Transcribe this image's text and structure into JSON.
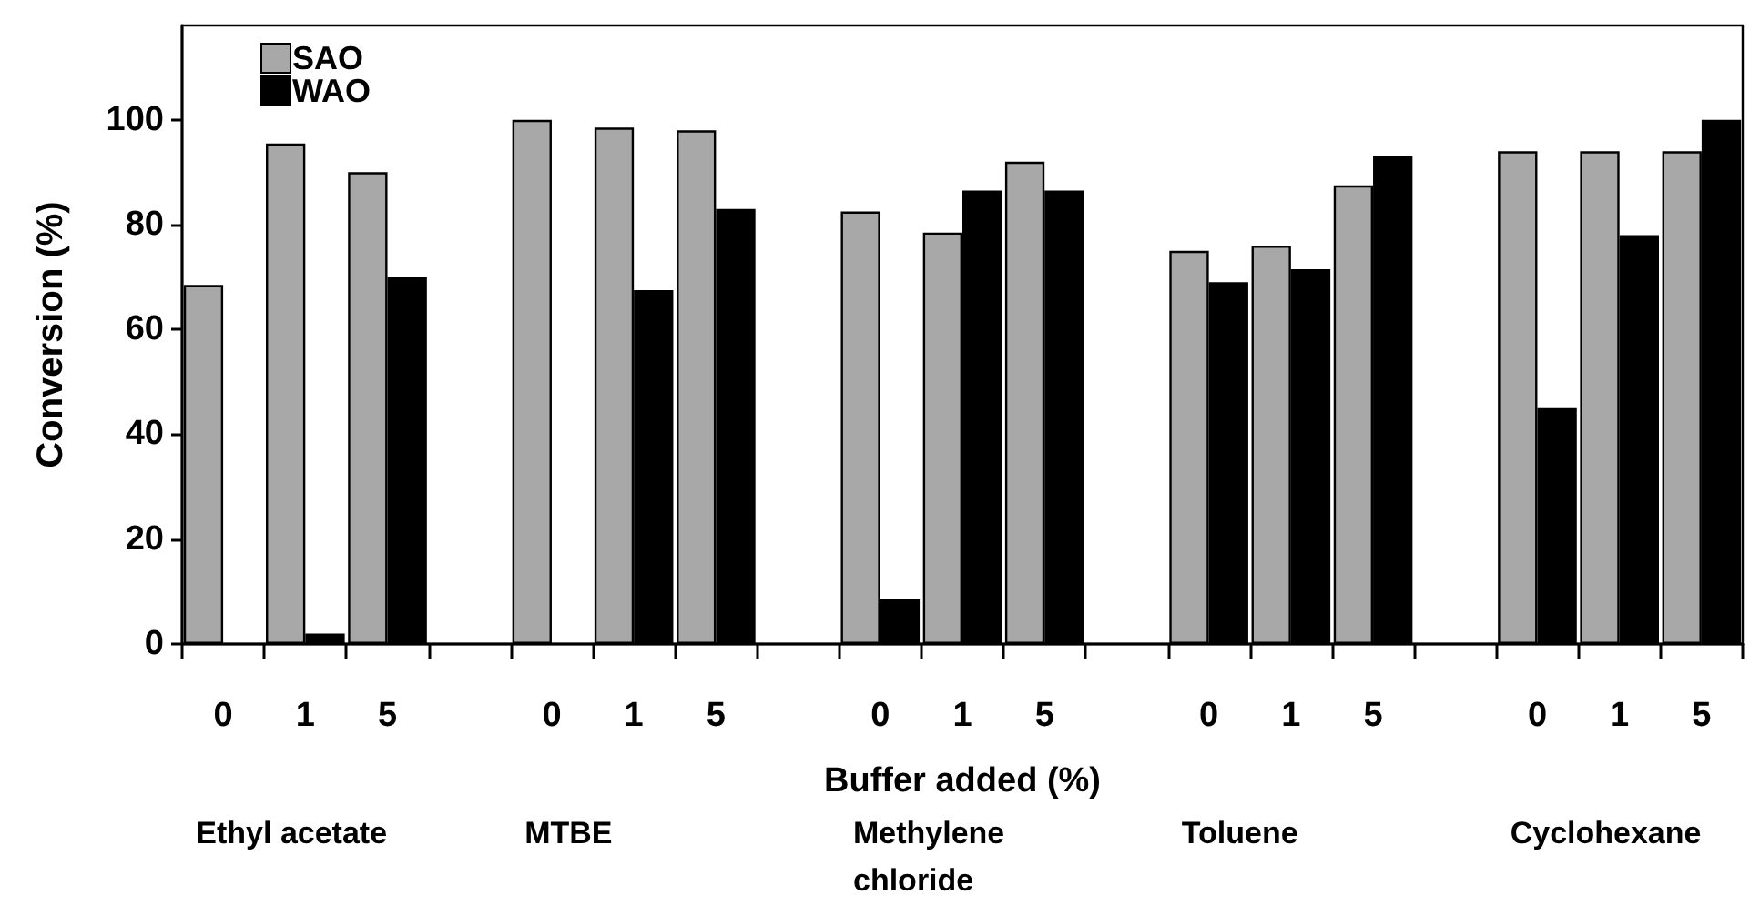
{
  "chart_data": {
    "type": "bar",
    "xlabel": "Buffer added (%)",
    "ylabel": "Conversion (%)",
    "categories": [
      "0",
      "1",
      "5",
      null,
      "0",
      "1",
      "5",
      null,
      "0",
      "1",
      "5",
      null,
      "0",
      "1",
      "5",
      null,
      "0",
      "1",
      "5"
    ],
    "series": [
      {
        "name": "SAO",
        "color": "#a8a8a8",
        "values": [
          68.5,
          95.5,
          90,
          null,
          100,
          98.5,
          98,
          null,
          82.5,
          78.5,
          92,
          null,
          75,
          76,
          87.5,
          null,
          94,
          94,
          94
        ]
      },
      {
        "name": "WAO",
        "color": "#000000",
        "values": [
          null,
          2,
          70,
          null,
          null,
          67.5,
          83,
          null,
          8.5,
          86.5,
          86.5,
          null,
          69,
          71.5,
          93,
          null,
          45,
          78,
          100
        ]
      }
    ],
    "annotations": [
      "Ethyl acetate",
      "MTBE",
      "Methylene chloride",
      "Toluene",
      "Cyclohexane"
    ],
    "ylim": [
      0,
      118
    ],
    "yticks": [
      0,
      20,
      40,
      60,
      80,
      100
    ],
    "grid": false,
    "legend": "top left"
  }
}
